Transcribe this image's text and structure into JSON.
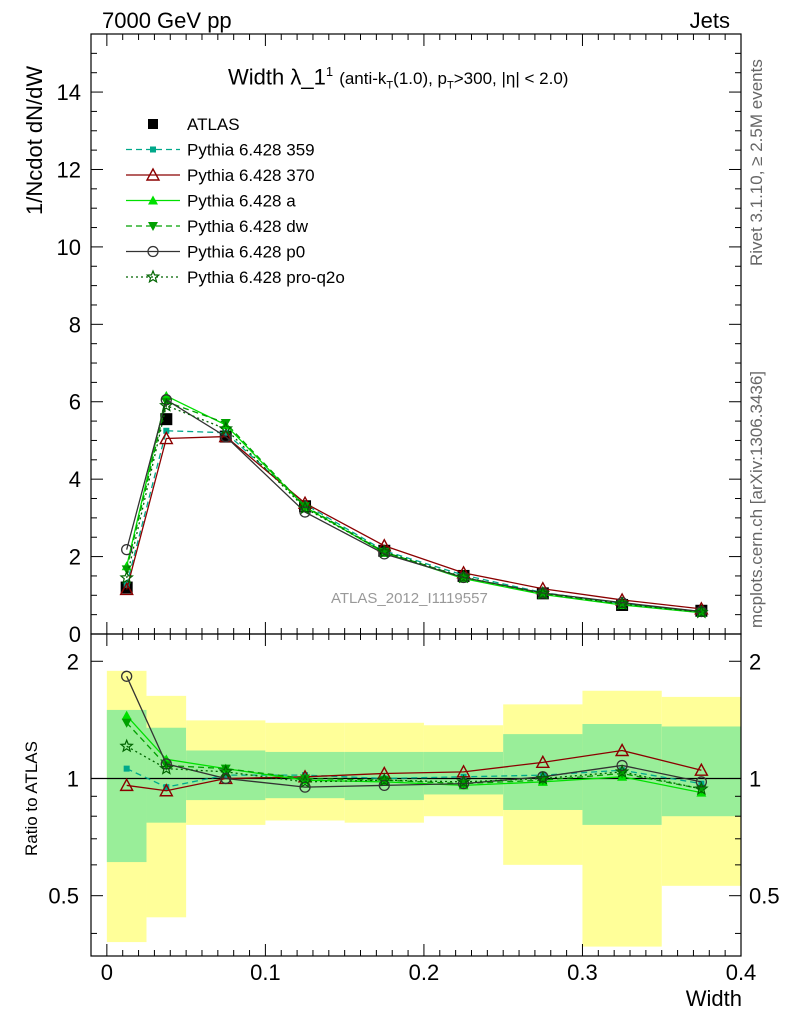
{
  "header": {
    "left": "7000 GeV pp",
    "right": "Jets"
  },
  "side_labels": {
    "rivet": "Rivet 3.1.10, ≥ 2.5M events",
    "mcplots": "mcplots.cern.ch [arXiv:1306.3436]"
  },
  "chart_data": [
    {
      "type": "line",
      "panel": "main",
      "title": "Width λ_1¹ (anti-k_T(1.0), p_T>300, |η| < 2.0)",
      "title_parts": {
        "main": "Width λ_1",
        "sup": "1",
        "pre": "(anti-k",
        "sub_t": "T",
        "mid": "(1.0), p",
        "sub_t2": "T",
        "post": ">300, |η| < 2.0)"
      },
      "xlabel": "Width",
      "ylabel": "1/Ncdot dN/dW",
      "watermark": "ATLAS_2012_I1119557",
      "xlim": [
        -0.01,
        0.4
      ],
      "ylim": [
        0,
        15.5
      ],
      "yticks": [
        0,
        2,
        4,
        6,
        8,
        10,
        12,
        14
      ],
      "xticks": [
        0,
        0.1,
        0.2,
        0.3,
        0.4
      ],
      "x": [
        0.0125,
        0.0375,
        0.075,
        0.125,
        0.175,
        0.225,
        0.275,
        0.325,
        0.375
      ],
      "series": [
        {
          "name": "ATLAS",
          "color": "#000000",
          "marker": "square",
          "line": "none",
          "values": [
            1.2,
            5.55,
            5.1,
            3.3,
            2.15,
            1.5,
            1.05,
            0.75,
            0.6
          ]
        },
        {
          "name": "Pythia 6.428 359",
          "color": "#00a88a",
          "marker": "small-square",
          "line": "dashed",
          "values": [
            1.27,
            5.25,
            5.2,
            3.35,
            2.15,
            1.52,
            1.07,
            0.79,
            0.58
          ]
        },
        {
          "name": "Pythia 6.428 370",
          "color": "#8b0000",
          "marker": "open-triangle",
          "line": "solid",
          "values": [
            1.15,
            5.05,
            5.1,
            3.38,
            2.28,
            1.58,
            1.17,
            0.88,
            0.65
          ]
        },
        {
          "name": "Pythia 6.428 a",
          "color": "#00e000",
          "marker": "triangle",
          "line": "solid",
          "values": [
            1.75,
            6.15,
            5.4,
            3.28,
            2.1,
            1.43,
            1.02,
            0.75,
            0.55
          ]
        },
        {
          "name": "Pythia 6.428 dw",
          "color": "#00a000",
          "marker": "down-triangle",
          "line": "dashed",
          "values": [
            1.67,
            6.0,
            5.45,
            3.3,
            2.12,
            1.46,
            1.04,
            0.77,
            0.57
          ]
        },
        {
          "name": "Pythia 6.428 p0",
          "color": "#333333",
          "marker": "open-circle",
          "line": "solid",
          "values": [
            2.18,
            6.05,
            5.1,
            3.15,
            2.07,
            1.46,
            1.06,
            0.81,
            0.58
          ]
        },
        {
          "name": "Pythia 6.428 pro-q2o",
          "color": "#006400",
          "marker": "star",
          "line": "dotted",
          "values": [
            1.45,
            5.9,
            5.3,
            3.25,
            2.12,
            1.47,
            1.05,
            0.78,
            0.56
          ]
        }
      ]
    },
    {
      "type": "line",
      "panel": "ratio",
      "xlabel": "Width",
      "ylabel": "Ratio to ATLAS",
      "ylim": [
        0.35,
        2.35
      ],
      "ytick_labels": [
        "0.5",
        "1",
        "2"
      ],
      "xtick_labels": [
        "0",
        "0.1",
        "0.2",
        "0.3",
        "0.4"
      ],
      "bin_edges": [
        0,
        0.025,
        0.05,
        0.1,
        0.15,
        0.2,
        0.25,
        0.3,
        0.35,
        0.4
      ],
      "band_outer": [
        [
          0.38,
          1.89
        ],
        [
          0.44,
          1.63
        ],
        [
          0.76,
          1.41
        ],
        [
          0.78,
          1.39
        ],
        [
          0.77,
          1.39
        ],
        [
          0.8,
          1.37
        ],
        [
          0.6,
          1.55
        ],
        [
          0.37,
          1.68
        ],
        [
          0.53,
          1.62
        ]
      ],
      "band_inner": [
        [
          0.61,
          1.5
        ],
        [
          0.77,
          1.35
        ],
        [
          0.88,
          1.18
        ],
        [
          0.89,
          1.17
        ],
        [
          0.88,
          1.17
        ],
        [
          0.91,
          1.17
        ],
        [
          0.83,
          1.3
        ],
        [
          0.76,
          1.38
        ],
        [
          0.8,
          1.36
        ]
      ],
      "band_colors": {
        "outer": "#ffff99",
        "inner": "#99ee99"
      },
      "x": [
        0.0125,
        0.0375,
        0.075,
        0.125,
        0.175,
        0.225,
        0.275,
        0.325,
        0.375
      ],
      "series": [
        {
          "name": "Pythia 6.428 359",
          "color": "#00a88a",
          "marker": "small-square",
          "line": "dashed",
          "values": [
            1.06,
            0.95,
            1.02,
            1.02,
            1.0,
            1.01,
            1.02,
            1.05,
            0.97
          ]
        },
        {
          "name": "Pythia 6.428 370",
          "color": "#8b0000",
          "marker": "open-triangle",
          "line": "solid",
          "values": [
            0.96,
            0.93,
            1.0,
            1.01,
            1.03,
            1.04,
            1.1,
            1.18,
            1.05
          ]
        },
        {
          "name": "Pythia 6.428 a",
          "color": "#00e000",
          "marker": "triangle",
          "line": "solid",
          "values": [
            1.45,
            1.12,
            1.06,
            0.99,
            0.98,
            0.96,
            0.98,
            1.01,
            0.92
          ]
        },
        {
          "name": "Pythia 6.428 dw",
          "color": "#00a000",
          "marker": "down-triangle",
          "line": "dashed",
          "values": [
            1.39,
            1.08,
            1.06,
            1.0,
            0.99,
            0.97,
            0.99,
            1.03,
            0.94
          ]
        },
        {
          "name": "Pythia 6.428 p0",
          "color": "#333333",
          "marker": "open-circle",
          "line": "solid",
          "values": [
            1.83,
            1.09,
            1.0,
            0.95,
            0.96,
            0.97,
            1.01,
            1.08,
            0.98
          ]
        },
        {
          "name": "Pythia 6.428 pro-q2o",
          "color": "#006400",
          "marker": "star",
          "line": "dotted",
          "values": [
            1.21,
            1.06,
            1.04,
            0.98,
            0.99,
            0.98,
            1.0,
            1.04,
            0.94
          ]
        }
      ]
    }
  ]
}
